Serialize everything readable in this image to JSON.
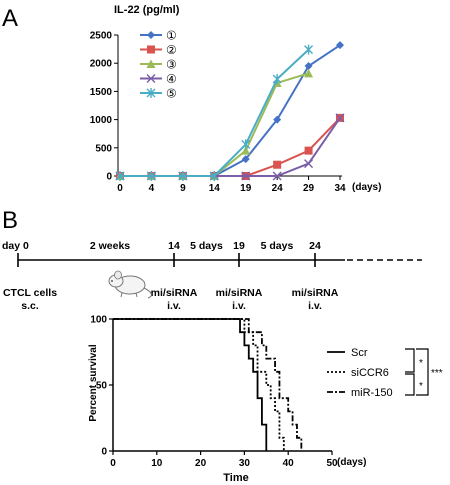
{
  "panel_a": {
    "letter": "A",
    "chart_data": {
      "type": "line",
      "ylabel": "IL-22 (pg/ml)",
      "xlabel": "(days)",
      "x": [
        0,
        4,
        9,
        14,
        19,
        24,
        29,
        34
      ],
      "xticks": [
        "0",
        "4",
        "9",
        "14",
        "19",
        "24",
        "29",
        "34"
      ],
      "yticks": [
        "0",
        "500",
        "1000",
        "1500",
        "2000",
        "2500"
      ],
      "ylim": [
        0,
        2500
      ],
      "grid": false,
      "legend_position": "top-left",
      "series": [
        {
          "name": "①",
          "color": "#4472c4",
          "marker": "diamond",
          "values": [
            0,
            0,
            0,
            0,
            300,
            1000,
            1950,
            2320
          ]
        },
        {
          "name": "②",
          "color": "#d9534f",
          "marker": "square",
          "values": [
            0,
            0,
            0,
            0,
            0,
            200,
            450,
            1030
          ]
        },
        {
          "name": "③",
          "color": "#9bbb59",
          "marker": "triangle",
          "values": [
            0,
            0,
            0,
            0,
            450,
            1650,
            1820,
            null
          ]
        },
        {
          "name": "④",
          "color": "#7b5ea7",
          "marker": "x",
          "values": [
            0,
            0,
            0,
            0,
            0,
            0,
            220,
            1030
          ]
        },
        {
          "name": "⑤",
          "color": "#4bacc6",
          "marker": "star",
          "values": [
            0,
            0,
            0,
            0,
            560,
            1720,
            2240,
            null
          ]
        }
      ]
    }
  },
  "panel_b": {
    "letter": "B",
    "timeline": {
      "points": [
        {
          "day": "day 0",
          "below": [
            "CTCL cells",
            "s.c."
          ]
        },
        {
          "day": "14",
          "below": [
            "mi/siRNA",
            "i.v."
          ]
        },
        {
          "day": "19",
          "below": [
            "mi/siRNA",
            "i.v."
          ]
        },
        {
          "day": "24",
          "below": [
            "mi/siRNA",
            "i.v."
          ]
        }
      ],
      "intervals": [
        "2 weeks",
        "5 days",
        "5 days"
      ]
    },
    "chart_data": {
      "type": "line",
      "ylabel": "Percent survival",
      "xlabel": "Time",
      "xunit": "(days)",
      "xticks": [
        "0",
        "10",
        "20",
        "30",
        "40",
        "50"
      ],
      "yticks": [
        "0",
        "50",
        "100"
      ],
      "xlim": [
        0,
        50
      ],
      "ylim": [
        0,
        100
      ],
      "legend_position": "right",
      "significance": [
        "*",
        "*",
        "***"
      ],
      "series": [
        {
          "name": "Scr",
          "style": "solid",
          "steps": [
            [
              0,
              100
            ],
            [
              29,
              100
            ],
            [
              29,
              90
            ],
            [
              30,
              90
            ],
            [
              30,
              80
            ],
            [
              31,
              80
            ],
            [
              31,
              70
            ],
            [
              32,
              70
            ],
            [
              32,
              60
            ],
            [
              33,
              60
            ],
            [
              33,
              40
            ],
            [
              34,
              40
            ],
            [
              34,
              20
            ],
            [
              35,
              20
            ],
            [
              35,
              0
            ]
          ]
        },
        {
          "name": "siCCR6",
          "style": "dotted",
          "steps": [
            [
              0,
              100
            ],
            [
              30,
              100
            ],
            [
              30,
              90
            ],
            [
              32,
              90
            ],
            [
              32,
              80
            ],
            [
              33,
              80
            ],
            [
              33,
              60
            ],
            [
              35,
              60
            ],
            [
              35,
              50
            ],
            [
              36,
              50
            ],
            [
              36,
              40
            ],
            [
              37,
              40
            ],
            [
              37,
              30
            ],
            [
              38,
              30
            ],
            [
              38,
              10
            ],
            [
              39,
              10
            ],
            [
              39,
              0
            ]
          ]
        },
        {
          "name": "miR-150",
          "style": "dashdot",
          "steps": [
            [
              0,
              100
            ],
            [
              31,
              100
            ],
            [
              31,
              90
            ],
            [
              34,
              90
            ],
            [
              34,
              80
            ],
            [
              35,
              80
            ],
            [
              35,
              70
            ],
            [
              37,
              70
            ],
            [
              37,
              60
            ],
            [
              38,
              60
            ],
            [
              38,
              40
            ],
            [
              40,
              40
            ],
            [
              40,
              30
            ],
            [
              41,
              30
            ],
            [
              41,
              20
            ],
            [
              42,
              20
            ],
            [
              42,
              10
            ],
            [
              43,
              10
            ],
            [
              43,
              0
            ]
          ]
        }
      ]
    }
  }
}
